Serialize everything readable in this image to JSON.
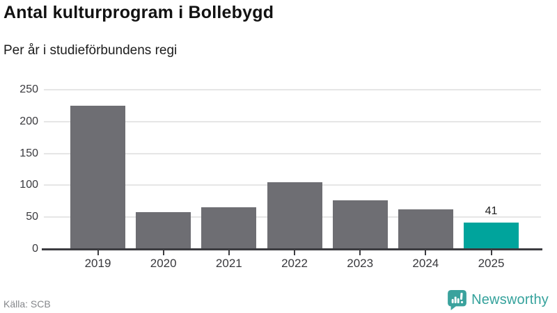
{
  "header": {
    "title": "Antal kulturprogram i Bollebygd",
    "subtitle": "Per år i studieförbundens regi"
  },
  "chart_data": {
    "type": "bar",
    "title": "Antal kulturprogram i Bollebygd",
    "subtitle": "Per år i studieförbundens regi",
    "categories": [
      "2019",
      "2020",
      "2021",
      "2022",
      "2023",
      "2024",
      "2025"
    ],
    "values": [
      225,
      58,
      66,
      105,
      76,
      62,
      41
    ],
    "ylim": [
      0,
      250
    ],
    "yticks": [
      0,
      50,
      100,
      150,
      200,
      250
    ],
    "grid": true,
    "legend": "none",
    "bar_color": "#6e6e73",
    "highlight_color": "#00a49c",
    "highlight_index": 6,
    "value_label": {
      "index": 6,
      "text": "41"
    },
    "xlabel": "",
    "ylabel": ""
  },
  "footer": {
    "source": "Källa: SCB",
    "brand_name": "Newsworthy",
    "brand_color": "#35a29c"
  }
}
